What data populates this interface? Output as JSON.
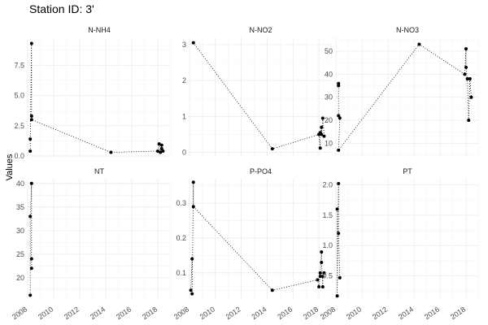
{
  "title": "Station ID: 3'",
  "ylabel": "Values",
  "chart_data": {
    "type": "scatter",
    "style": "points connected by dotted line, small multiples",
    "xlim": [
      2008,
      2019
    ],
    "x_ticks": [
      "2008",
      "2010",
      "2012",
      "2014",
      "2016",
      "2018"
    ],
    "grid": true,
    "panels": [
      {
        "name": "N-NH4",
        "ylim": [
          0,
          9.8
        ],
        "y_ticks": [
          0,
          2.5,
          5,
          7.5
        ],
        "y_tick_labels": [
          "0.0",
          "2.5",
          "5.0",
          "7.5"
        ],
        "points": [
          [
            2008.2,
            0.4
          ],
          [
            2008.2,
            1.4
          ],
          [
            2008.3,
            9.3
          ],
          [
            2008.3,
            3.3
          ],
          [
            2008.3,
            3.0
          ],
          [
            2014.4,
            0.3
          ],
          [
            2018.0,
            0.4
          ],
          [
            2018.1,
            1.0
          ],
          [
            2018.2,
            0.3
          ],
          [
            2018.3,
            0.9
          ],
          [
            2018.3,
            0.6
          ],
          [
            2018.4,
            0.4
          ]
        ]
      },
      {
        "name": "N-NO2",
        "ylim": [
          -0.1,
          3.2
        ],
        "y_ticks": [
          0,
          1,
          2,
          3
        ],
        "y_tick_labels": [
          "0",
          "1",
          "2",
          "3"
        ],
        "points": [
          [
            2008.3,
            3.05
          ],
          [
            2014.4,
            0.1
          ],
          [
            2018.0,
            0.5
          ],
          [
            2018.1,
            0.12
          ],
          [
            2018.1,
            0.55
          ],
          [
            2018.2,
            0.7
          ],
          [
            2018.2,
            0.5
          ],
          [
            2018.3,
            0.95
          ],
          [
            2018.4,
            0.45
          ]
        ]
      },
      {
        "name": "N-NO3",
        "ylim": [
          4.5,
          56
        ],
        "y_ticks": [
          10,
          20,
          30,
          40,
          50
        ],
        "y_tick_labels": [
          "10",
          "20",
          "30",
          "40",
          "50"
        ],
        "points": [
          [
            2008.2,
            36
          ],
          [
            2008.2,
            35
          ],
          [
            2008.2,
            22
          ],
          [
            2008.3,
            21
          ],
          [
            2008.2,
            7
          ],
          [
            2014.4,
            53
          ],
          [
            2017.9,
            40
          ],
          [
            2018.0,
            51
          ],
          [
            2018.0,
            43
          ],
          [
            2018.1,
            38
          ],
          [
            2018.2,
            20
          ],
          [
            2018.3,
            38
          ],
          [
            2018.4,
            30
          ]
        ]
      },
      {
        "name": "NT",
        "ylim": [
          15.5,
          41
        ],
        "y_ticks": [
          20,
          25,
          30,
          35,
          40
        ],
        "y_tick_labels": [
          "20",
          "25",
          "30",
          "35",
          "40"
        ],
        "points": [
          [
            2008.2,
            16.3
          ],
          [
            2008.2,
            33
          ],
          [
            2008.3,
            40
          ],
          [
            2008.3,
            24
          ],
          [
            2008.3,
            22
          ]
        ]
      },
      {
        "name": "P-PO4",
        "ylim": [
          0.025,
          0.37
        ],
        "y_ticks": [
          0.1,
          0.2,
          0.3
        ],
        "y_tick_labels": [
          "0.1",
          "0.2",
          "0.3"
        ],
        "points": [
          [
            2008.1,
            0.05
          ],
          [
            2008.2,
            0.14
          ],
          [
            2008.2,
            0.04
          ],
          [
            2008.3,
            0.36
          ],
          [
            2008.3,
            0.29
          ],
          [
            2014.4,
            0.05
          ],
          [
            2017.9,
            0.08
          ],
          [
            2018.0,
            0.06
          ],
          [
            2018.1,
            0.09
          ],
          [
            2018.1,
            0.1
          ],
          [
            2018.2,
            0.16
          ],
          [
            2018.2,
            0.13
          ],
          [
            2018.3,
            0.06
          ],
          [
            2018.3,
            0.09
          ],
          [
            2018.4,
            0.1
          ]
        ]
      },
      {
        "name": "PT",
        "ylim": [
          0.12,
          2.1
        ],
        "y_ticks": [
          0.5,
          1.0,
          1.5,
          2.0
        ],
        "y_tick_labels": [
          "0.5",
          "1.0",
          "1.5",
          "2.0"
        ],
        "points": [
          [
            2008.1,
            1.6
          ],
          [
            2008.1,
            0.17
          ],
          [
            2008.2,
            2.02
          ],
          [
            2008.2,
            1.2
          ],
          [
            2008.3,
            0.47
          ]
        ]
      }
    ]
  }
}
